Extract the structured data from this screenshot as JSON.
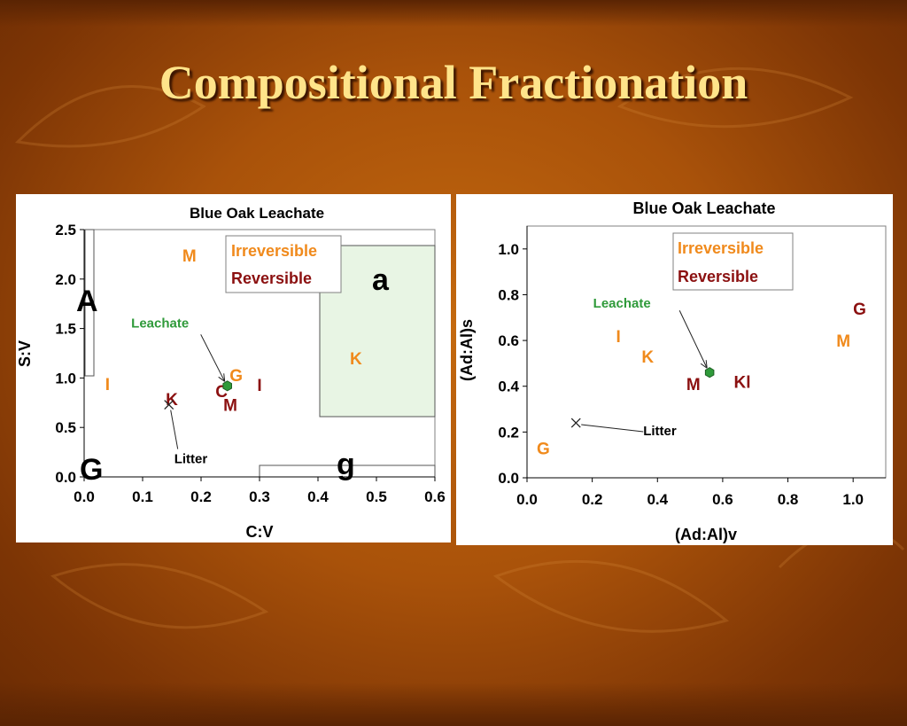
{
  "slide_title": "Compositional Fractionation",
  "colors": {
    "irreversible": "#f08a1c",
    "reversible": "#8b1010",
    "leachate": "#2f9a3a",
    "region_fill": "#e8f5e4",
    "axis": "#000000"
  },
  "chart_data": [
    {
      "type": "scatter",
      "title": "Blue Oak Leachate",
      "xlabel": "C:V",
      "ylabel": "S:V",
      "xlim": [
        0.0,
        0.6
      ],
      "ylim": [
        0.0,
        2.5
      ],
      "x_ticks": [
        "0.0",
        "0.1",
        "0.2",
        "0.3",
        "0.4",
        "0.5",
        "0.6"
      ],
      "y_ticks": [
        "0.0",
        "0.5",
        "1.0",
        "1.5",
        "2.0",
        "2.5"
      ],
      "grid": false,
      "legend": {
        "position": "top-center",
        "entries": [
          "Irreversible",
          "Reversible"
        ]
      },
      "region_labels": [
        "A",
        "a",
        "G",
        "g"
      ],
      "labels": [
        {
          "text": "M",
          "x": 0.18,
          "y": 2.24,
          "series": "Irreversible"
        },
        {
          "text": "I",
          "x": 0.04,
          "y": 0.94,
          "series": "Irreversible"
        },
        {
          "text": "G",
          "x": 0.26,
          "y": 1.03,
          "series": "Irreversible"
        },
        {
          "text": "K",
          "x": 0.465,
          "y": 1.2,
          "series": "Irreversible"
        },
        {
          "text": "K",
          "x": 0.15,
          "y": 0.79,
          "series": "Reversible"
        },
        {
          "text": "C",
          "x": 0.235,
          "y": 0.87,
          "series": "Reversible"
        },
        {
          "text": "M",
          "x": 0.25,
          "y": 0.73,
          "series": "Reversible"
        },
        {
          "text": "I",
          "x": 0.3,
          "y": 0.93,
          "series": "Reversible"
        }
      ],
      "leachate": {
        "label": "Leachate",
        "x": 0.245,
        "y": 0.92
      },
      "litter": {
        "label": "Litter",
        "x": 0.145,
        "y": 0.73
      }
    },
    {
      "type": "scatter",
      "title": "Blue Oak Leachate",
      "xlabel": "(Ad:Al)v",
      "ylabel": "(Ad:Al)s",
      "xlim": [
        0.0,
        1.1
      ],
      "ylim": [
        0.0,
        1.1
      ],
      "x_ticks": [
        "0.0",
        "0.2",
        "0.4",
        "0.6",
        "0.8",
        "1.0"
      ],
      "y_ticks": [
        "0.0",
        "0.2",
        "0.4",
        "0.6",
        "0.8",
        "1.0"
      ],
      "grid": false,
      "legend": {
        "position": "top-right",
        "entries": [
          "Irreversible",
          "Reversible"
        ]
      },
      "labels": [
        {
          "text": "I",
          "x": 0.28,
          "y": 0.62,
          "series": "Irreversible"
        },
        {
          "text": "K",
          "x": 0.37,
          "y": 0.53,
          "series": "Irreversible"
        },
        {
          "text": "M",
          "x": 0.97,
          "y": 0.6,
          "series": "Irreversible"
        },
        {
          "text": "G",
          "x": 0.05,
          "y": 0.13,
          "series": "Irreversible"
        },
        {
          "text": "G",
          "x": 1.02,
          "y": 0.74,
          "series": "Reversible"
        },
        {
          "text": "M",
          "x": 0.51,
          "y": 0.41,
          "series": "Reversible"
        },
        {
          "text": "Kl",
          "x": 0.66,
          "y": 0.42,
          "series": "Reversible"
        }
      ],
      "leachate": {
        "label": "Leachate",
        "x": 0.56,
        "y": 0.46
      },
      "litter": {
        "label": "Litter",
        "x": 0.15,
        "y": 0.24
      }
    }
  ]
}
